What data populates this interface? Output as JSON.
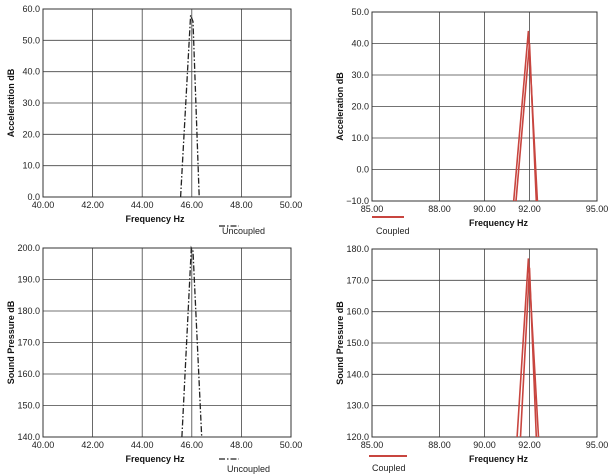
{
  "chart_data": [
    {
      "type": "line",
      "xlabel": "Frequency Hz",
      "ylabel": "Acceleration dB",
      "xlim": [
        40,
        50
      ],
      "ylim": [
        0,
        60
      ],
      "xticks": [
        40,
        42,
        44,
        46,
        48,
        50
      ],
      "xtick_labels": [
        "40.00",
        "42.00",
        "44.00",
        "46.00",
        "48.00",
        "50.00"
      ],
      "yticks": [
        0,
        10,
        20,
        30,
        40,
        50,
        60
      ],
      "ytick_labels": [
        "0.0",
        "10.0",
        "20.0",
        "30.0",
        "40.0",
        "50.0",
        "60.0"
      ],
      "grid": true,
      "legend": "below-right",
      "series": [
        {
          "name": "Uncoupled",
          "color": "#222222",
          "style": "dashdot",
          "x": [
            45.55,
            45.95,
            46.05,
            46.3
          ],
          "y": [
            0,
            58,
            56,
            0
          ]
        }
      ]
    },
    {
      "type": "line",
      "xlabel": "Frequency Hz",
      "ylabel": "Acceleration dB",
      "xlim": [
        85,
        95
      ],
      "ylim": [
        -10,
        50
      ],
      "xticks": [
        85,
        88,
        90,
        92,
        95
      ],
      "xtick_labels": [
        "85.00",
        "88.00",
        "90.00",
        "92.00",
        "95.00"
      ],
      "yticks": [
        -10,
        0,
        10,
        20,
        30,
        40,
        50
      ],
      "ytick_labels": [
        "−10.0",
        "0.0",
        "10.0",
        "20.0",
        "30.0",
        "40.0",
        "50.0"
      ],
      "grid": true,
      "legend": "below-left",
      "series": [
        {
          "name": "Coupled",
          "color": "#c8453f",
          "style": "solid",
          "x": [
            91.3,
            91.95,
            92.35
          ],
          "y": [
            -10,
            44,
            -10
          ]
        },
        {
          "name": "",
          "color": "#c8453f",
          "style": "solid",
          "x": [
            91.4,
            92.0,
            92.3
          ],
          "y": [
            -10,
            40,
            -10
          ]
        }
      ]
    },
    {
      "type": "line",
      "xlabel": "Frequency Hz",
      "ylabel": "Sound Pressure dB",
      "xlim": [
        40,
        50
      ],
      "ylim": [
        140,
        200
      ],
      "xticks": [
        40,
        42,
        44,
        46,
        48,
        50
      ],
      "xtick_labels": [
        "40.00",
        "42.00",
        "44.00",
        "46.00",
        "48.00",
        "50.00"
      ],
      "yticks": [
        140,
        150,
        160,
        170,
        180,
        190,
        200
      ],
      "ytick_labels": [
        "140.0",
        "150.0",
        "160.0",
        "170.0",
        "180.0",
        "190.0",
        "200.0"
      ],
      "grid": true,
      "legend": "below-right",
      "series": [
        {
          "name": "Uncoupled",
          "color": "#222222",
          "style": "dashdot",
          "x": [
            45.6,
            45.98,
            46.05,
            46.4
          ],
          "y": [
            140,
            200,
            199,
            140
          ]
        }
      ]
    },
    {
      "type": "line",
      "xlabel": "Frequency Hz",
      "ylabel": "Sound Pressure dB",
      "xlim": [
        85,
        95
      ],
      "ylim": [
        120,
        180
      ],
      "xticks": [
        85,
        88,
        90,
        92,
        95
      ],
      "xtick_labels": [
        "85.00",
        "88.00",
        "90.00",
        "92.00",
        "95.00"
      ],
      "yticks": [
        120,
        130,
        140,
        150,
        160,
        170,
        180
      ],
      "ytick_labels": [
        "120.0",
        "130.0",
        "140.0",
        "150.0",
        "160.0",
        "170.0",
        "180.0"
      ],
      "grid": true,
      "legend": "below-left",
      "series": [
        {
          "name": "Coupled",
          "color": "#c8453f",
          "style": "solid",
          "x": [
            91.45,
            91.95,
            92.4
          ],
          "y": [
            120,
            177,
            120
          ]
        },
        {
          "name": "",
          "color": "#c8453f",
          "style": "solid",
          "x": [
            91.6,
            92.0,
            92.3
          ],
          "y": [
            120,
            174,
            120
          ]
        }
      ]
    }
  ]
}
